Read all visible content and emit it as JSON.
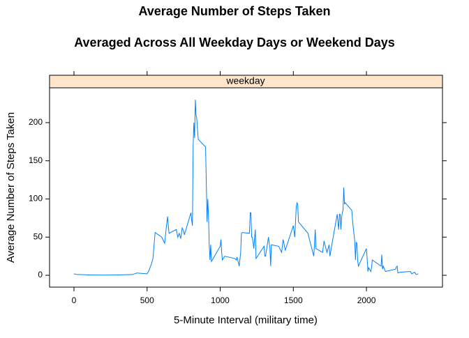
{
  "chart_data": {
    "type": "line",
    "title": "Average Number of Steps Taken",
    "subtitle": "Averaged Across All Weekday Days or Weekend Days",
    "panel": "weekday",
    "x_label": "5-Minute Interval (military time)",
    "y_label": "Average Number of Steps Taken",
    "color": "#0080ff",
    "xlim": [
      -167,
      2520
    ],
    "xticks": [
      0,
      500,
      1000,
      1500,
      2000
    ],
    "ylim": [
      -15.5,
      245.6
    ],
    "yticks": [
      0,
      50,
      100,
      150,
      200
    ],
    "x": [
      0,
      20,
      40,
      100,
      200,
      300,
      400,
      430,
      500,
      510,
      530,
      540,
      550,
      555,
      600,
      620,
      630,
      640,
      645,
      650,
      700,
      710,
      720,
      730,
      740,
      750,
      755,
      800,
      805,
      810,
      815,
      820,
      825,
      830,
      835,
      840,
      845,
      850,
      900,
      905,
      910,
      915,
      920,
      925,
      930,
      935,
      940,
      1000,
      1005,
      1010,
      1015,
      1030,
      1100,
      1110,
      1115,
      1130,
      1140,
      1145,
      1150,
      1200,
      1205,
      1210,
      1215,
      1220,
      1230,
      1240,
      1245,
      1300,
      1305,
      1310,
      1330,
      1340,
      1345,
      1350,
      1400,
      1420,
      1430,
      1445,
      1500,
      1510,
      1520,
      1525,
      1530,
      1535,
      1600,
      1610,
      1620,
      1640,
      1650,
      1655,
      1700,
      1710,
      1720,
      1730,
      1745,
      1750,
      1800,
      1810,
      1815,
      1820,
      1825,
      1830,
      1835,
      1840,
      1845,
      1850,
      1855,
      1900,
      1905,
      1910,
      1920,
      1925,
      1930,
      1935,
      1940,
      1945,
      2000,
      2005,
      2010,
      2015,
      2020,
      2030,
      2035,
      2040,
      2100,
      2105,
      2110,
      2115,
      2130,
      2200,
      2205,
      2210,
      2215,
      2230,
      2300,
      2310,
      2330,
      2340,
      2355
    ],
    "values": [
      2,
      1,
      1,
      0.5,
      0.3,
      0.5,
      1,
      3,
      2,
      5,
      15,
      22,
      45,
      56,
      50,
      42,
      60,
      77,
      65,
      55,
      60,
      50,
      55,
      48,
      62,
      58,
      53,
      82,
      72,
      65,
      170,
      200,
      180,
      230,
      210,
      205,
      190,
      178,
      168,
      120,
      70,
      100,
      78,
      40,
      20,
      40,
      18,
      38,
      47,
      30,
      20,
      25,
      22,
      20,
      24,
      12,
      30,
      55,
      56,
      55,
      82,
      82,
      50,
      50,
      35,
      60,
      22,
      38,
      25,
      25,
      50,
      35,
      12,
      40,
      38,
      30,
      47,
      33,
      65,
      50,
      90,
      95,
      93,
      70,
      55,
      47,
      40,
      25,
      60,
      35,
      30,
      45,
      37,
      30,
      40,
      25,
      80,
      60,
      80,
      80,
      60,
      75,
      82,
      85,
      115,
      93,
      95,
      85,
      72,
      62,
      45,
      20,
      43,
      42,
      20,
      12,
      35,
      22,
      5,
      10,
      8,
      5,
      10,
      20,
      12,
      27,
      8,
      12,
      5,
      8,
      11,
      12,
      3,
      4,
      5,
      2,
      4,
      1,
      2
    ]
  }
}
